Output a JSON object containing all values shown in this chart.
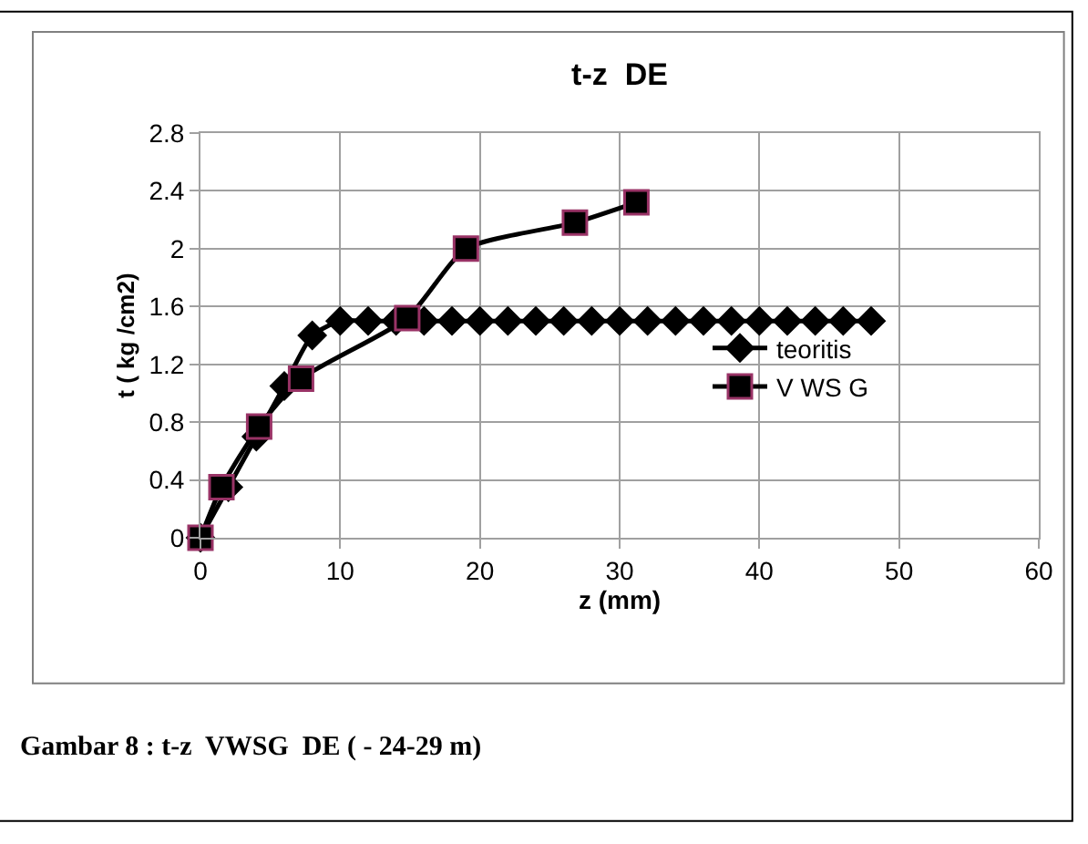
{
  "chart_data": {
    "type": "line",
    "title": "t-z  DE",
    "xlabel": "z (mm)",
    "ylabel": "t ( kg /cm2)",
    "xlim": [
      0,
      60
    ],
    "xticks": [
      0,
      10,
      20,
      30,
      40,
      50,
      60
    ],
    "ylim": [
      0,
      2.8
    ],
    "yticks": [
      0,
      0.4,
      0.8,
      1.2,
      1.6,
      2,
      2.4,
      2.8
    ],
    "grid": true,
    "legend": "right",
    "line_style": "solid",
    "series": [
      {
        "name": "teoritis",
        "color": "#000000",
        "marker": "diamond",
        "x": [
          0,
          2,
          4,
          6,
          8,
          10,
          12,
          14,
          16,
          18,
          20,
          22,
          24,
          26,
          28,
          30,
          32,
          34,
          36,
          38,
          40,
          42,
          44,
          46,
          48
        ],
        "values": [
          0,
          0.35,
          0.7,
          1.05,
          1.4,
          1.5,
          1.5,
          1.5,
          1.5,
          1.5,
          1.5,
          1.5,
          1.5,
          1.5,
          1.5,
          1.5,
          1.5,
          1.5,
          1.5,
          1.5,
          1.5,
          1.5,
          1.5,
          1.5,
          1.5
        ]
      },
      {
        "name": "V WS G",
        "color": "#000000",
        "marker": "square",
        "x": [
          0,
          1.5,
          4.2,
          7.2,
          14.8,
          19,
          26.8,
          31.2
        ],
        "values": [
          0,
          0.35,
          0.77,
          1.1,
          1.52,
          2.0,
          2.18,
          2.32
        ]
      }
    ],
    "annotations": [
      "Gambar 8 : t-z  VWSG  DE ( - 24-29 m)"
    ]
  }
}
